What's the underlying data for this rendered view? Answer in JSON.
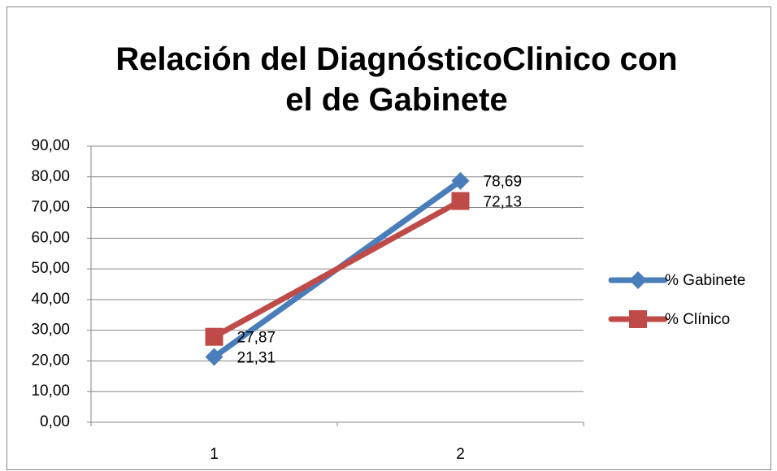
{
  "chart_data": {
    "type": "line",
    "title": "Relación del DiagnósticoClinico con el de Gabinete",
    "categories": [
      "1",
      "2"
    ],
    "series": [
      {
        "name": "% Gabinete",
        "color": "#4a7ebb",
        "marker": "diamond",
        "values": [
          21.31,
          78.69
        ],
        "value_labels": [
          "21,31",
          "78,69"
        ]
      },
      {
        "name": "% Clínico",
        "color": "#be4b48",
        "marker": "square",
        "values": [
          27.87,
          72.13
        ],
        "value_labels": [
          "27,87",
          "72,13"
        ]
      }
    ],
    "ylim": [
      0,
      90
    ],
    "yticks": [
      {
        "value": 0,
        "label": "0,00"
      },
      {
        "value": 10,
        "label": "10,00"
      },
      {
        "value": 20,
        "label": "20,00"
      },
      {
        "value": 30,
        "label": "30,00"
      },
      {
        "value": 40,
        "label": "40,00"
      },
      {
        "value": 50,
        "label": "50,00"
      },
      {
        "value": 60,
        "label": "60,00"
      },
      {
        "value": 70,
        "label": "70,00"
      },
      {
        "value": 80,
        "label": "80,00"
      },
      {
        "value": 90,
        "label": "90,00"
      }
    ],
    "grid": true,
    "legend": "right"
  }
}
